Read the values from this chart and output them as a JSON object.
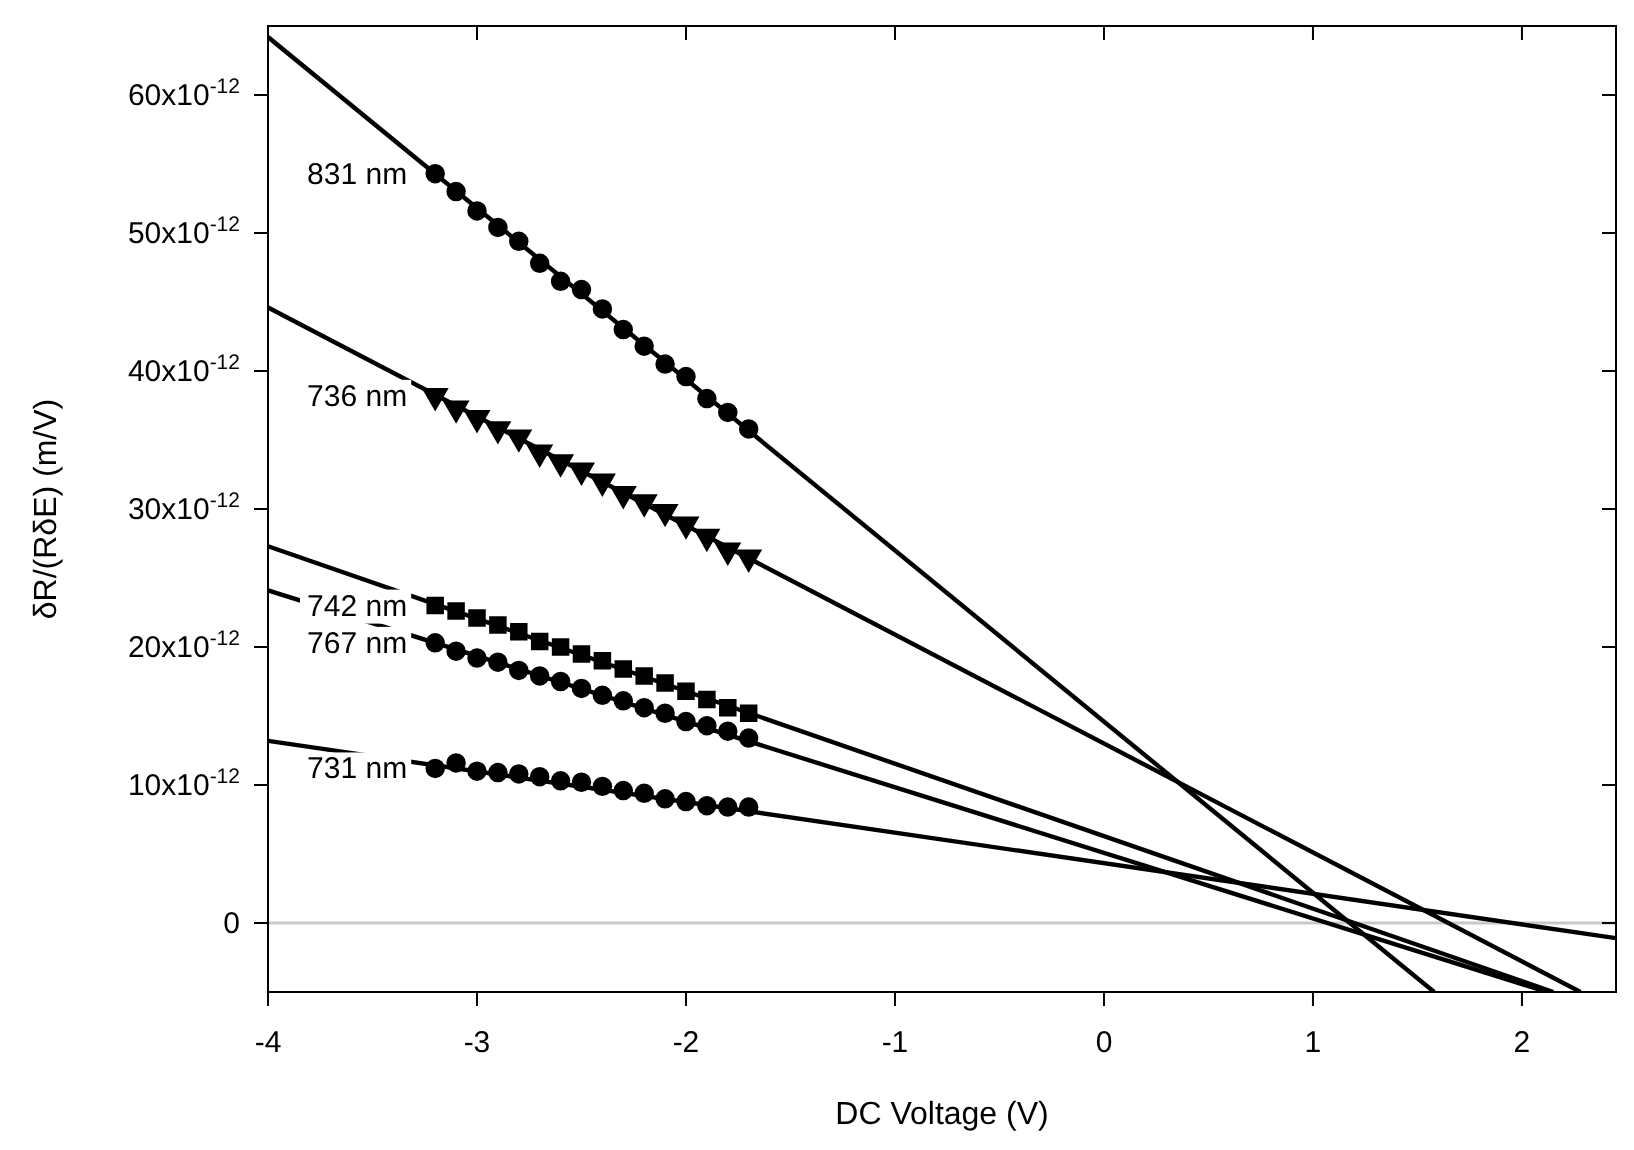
{
  "chart_data": {
    "type": "scatter",
    "xlabel": "DC Voltage (V)",
    "ylabel": "δR/(RδE) (m/V)",
    "xlim": [
      -4,
      2.45
    ],
    "xticks": [
      -4,
      -3,
      -2,
      -1,
      0,
      1,
      2
    ],
    "ylim": [
      -5e-12,
      6.5e-11
    ],
    "yticks": [
      {
        "value": 0,
        "label": "0"
      },
      {
        "value": 1e-11,
        "label": "10x10$^{-12}$"
      },
      {
        "value": 2e-11,
        "label": "20x10$^{-12}$"
      },
      {
        "value": 3e-11,
        "label": "30x10$^{-12}$"
      },
      {
        "value": 4e-11,
        "label": "40x10$^{-12}$"
      },
      {
        "value": 5e-11,
        "label": "50x10$^{-12}$"
      },
      {
        "value": 6e-11,
        "label": "60x10$^{-12}$"
      }
    ],
    "grid": false,
    "legend": false,
    "ref_lines": [
      {
        "axis": "y",
        "value": 0,
        "color": "#c8c8c8"
      }
    ],
    "series": [
      {
        "name": "831 nm",
        "marker": "circle",
        "color": "#000000",
        "x": [
          -3.2,
          -3.1,
          -3.0,
          -2.9,
          -2.8,
          -2.7,
          -2.6,
          -2.5,
          -2.4,
          -2.3,
          -2.2,
          -2.1,
          -2.0,
          -1.9,
          -1.8,
          -1.7
        ],
        "values": [
          5.43e-11,
          5.3e-11,
          5.16e-11,
          5.04e-11,
          4.94e-11,
          4.78e-11,
          4.65e-11,
          4.59e-11,
          4.45e-11,
          4.3e-11,
          4.18e-11,
          4.05e-11,
          3.96e-11,
          3.8e-11,
          3.7e-11,
          3.58e-11
        ]
      },
      {
        "name": "736 nm",
        "marker": "triangle",
        "color": "#000000",
        "x": [
          -3.2,
          -3.1,
          -3.0,
          -2.9,
          -2.8,
          -2.7,
          -2.6,
          -2.5,
          -2.4,
          -2.3,
          -2.2,
          -2.1,
          -2.0,
          -1.9,
          -1.8,
          -1.7
        ],
        "values": [
          3.82e-11,
          3.73e-11,
          3.66e-11,
          3.58e-11,
          3.52e-11,
          3.41e-11,
          3.34e-11,
          3.28e-11,
          3.2e-11,
          3.11e-11,
          3.05e-11,
          2.98e-11,
          2.89e-11,
          2.8e-11,
          2.7e-11,
          2.65e-11
        ]
      },
      {
        "name": "742 nm",
        "marker": "square",
        "color": "#000000",
        "x": [
          -3.2,
          -3.1,
          -3.0,
          -2.9,
          -2.8,
          -2.7,
          -2.6,
          -2.5,
          -2.4,
          -2.3,
          -2.2,
          -2.1,
          -2.0,
          -1.9,
          -1.8,
          -1.7
        ],
        "values": [
          2.3e-11,
          2.26e-11,
          2.21e-11,
          2.16e-11,
          2.11e-11,
          2.04e-11,
          2e-11,
          1.95e-11,
          1.9e-11,
          1.84e-11,
          1.79e-11,
          1.74e-11,
          1.68e-11,
          1.62e-11,
          1.56e-11,
          1.52e-11
        ]
      },
      {
        "name": "767 nm",
        "marker": "circle",
        "color": "#000000",
        "x": [
          -3.2,
          -3.1,
          -3.0,
          -2.9,
          -2.8,
          -2.7,
          -2.6,
          -2.5,
          -2.4,
          -2.3,
          -2.2,
          -2.1,
          -2.0,
          -1.9,
          -1.8,
          -1.7
        ],
        "values": [
          2.03e-11,
          1.97e-11,
          1.92e-11,
          1.89e-11,
          1.83e-11,
          1.79e-11,
          1.75e-11,
          1.7e-11,
          1.65e-11,
          1.61e-11,
          1.56e-11,
          1.52e-11,
          1.46e-11,
          1.43e-11,
          1.39e-11,
          1.34e-11
        ]
      },
      {
        "name": "731 nm",
        "marker": "circle",
        "color": "#000000",
        "x": [
          -3.2,
          -3.1,
          -3.0,
          -2.9,
          -2.8,
          -2.7,
          -2.6,
          -2.5,
          -2.4,
          -2.3,
          -2.2,
          -2.1,
          -2.0,
          -1.9,
          -1.8,
          -1.7
        ],
        "values": [
          1.12e-11,
          1.16e-11,
          1.1e-11,
          1.09e-11,
          1.08e-11,
          1.06e-11,
          1.03e-11,
          1.02e-11,
          9.9e-12,
          9.6e-12,
          9.4e-12,
          9e-12,
          8.8e-12,
          8.5e-12,
          8.4e-12,
          8.4e-12
        ]
      },
      {
        "type": "line",
        "color": "#000000",
        "x": [
          -4,
          1.58
        ],
        "values": [
          6.42e-11,
          -5e-12
        ]
      },
      {
        "type": "line",
        "color": "#000000",
        "x": [
          -4,
          2.28
        ],
        "values": [
          4.46e-11,
          -5e-12
        ]
      },
      {
        "type": "line",
        "color": "#000000",
        "x": [
          -4,
          2.15
        ],
        "values": [
          2.73e-11,
          -5e-12
        ]
      },
      {
        "type": "line",
        "color": "#000000",
        "x": [
          -4,
          2.12
        ],
        "values": [
          2.41e-11,
          -5e-12
        ]
      },
      {
        "type": "line",
        "color": "#000000",
        "x": [
          -4,
          2.45
        ],
        "values": [
          1.32e-11,
          -1.1e-12
        ]
      }
    ]
  }
}
